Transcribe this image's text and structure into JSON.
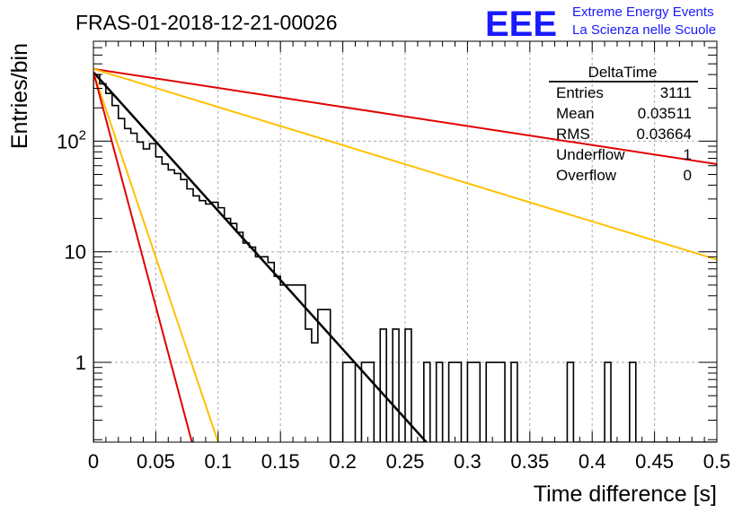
{
  "chart_data": {
    "type": "bar",
    "title": "FRAS-01-2018-12-21-00026",
    "xlabel": "Time difference [s]",
    "ylabel": "Entries/bin",
    "xlim": [
      0,
      0.5
    ],
    "ylim": [
      0.19,
      800
    ],
    "log_y": true,
    "grid": true,
    "x_ticks": [
      0,
      0.05,
      0.1,
      0.15,
      0.2,
      0.25,
      0.3,
      0.35,
      0.4,
      0.45,
      0.5
    ],
    "x_tick_labels": [
      "0",
      "0.05",
      "0.1",
      "0.15",
      "0.2",
      "0.25",
      "0.3",
      "0.35",
      "0.4",
      "0.45",
      "0.5"
    ],
    "y_ticks": [
      1,
      10,
      100
    ],
    "y_tick_labels": [
      "1",
      "10",
      "10^2"
    ],
    "histogram": {
      "bin_width": 0.005,
      "series_color": "#000000",
      "values": [
        400,
        330,
        270,
        210,
        160,
        130,
        118,
        98,
        85,
        95,
        72,
        62,
        55,
        51,
        45,
        37,
        32,
        29,
        27,
        28,
        25,
        20,
        18,
        15,
        12,
        11,
        9,
        9,
        8,
        6,
        5,
        5,
        5,
        5,
        2,
        1.5,
        3,
        3,
        0,
        0,
        1,
        1,
        0,
        1,
        1,
        0,
        2,
        0,
        2,
        0,
        2,
        0,
        0,
        1,
        0,
        1,
        0,
        1,
        1,
        0,
        1,
        1,
        0,
        1,
        1,
        1,
        0,
        1,
        0,
        0,
        0,
        0,
        0,
        0,
        0,
        0,
        1,
        0,
        0,
        0,
        0,
        0,
        1,
        0,
        0,
        0,
        1,
        0,
        0,
        0,
        0,
        0,
        0,
        0,
        0,
        0,
        0,
        0,
        0,
        0
      ]
    },
    "lines": [
      {
        "color": "#000000",
        "width": 2.5,
        "points": [
          [
            0.0,
            420
          ],
          [
            0.267,
            0.19
          ]
        ]
      },
      {
        "color": "#e00000",
        "width": 2,
        "points": [
          [
            0.0,
            450
          ],
          [
            0.5,
            62
          ]
        ]
      },
      {
        "color": "#ffc000",
        "width": 2,
        "points": [
          [
            0.0,
            450
          ],
          [
            0.5,
            8.5
          ]
        ]
      },
      {
        "color": "#ffc000",
        "width": 2,
        "points": [
          [
            0.0,
            420
          ],
          [
            0.1,
            0.19
          ]
        ]
      },
      {
        "color": "#e00000",
        "width": 2,
        "points": [
          [
            0.0,
            420
          ],
          [
            0.079,
            0.19
          ]
        ]
      }
    ],
    "stats": {
      "title": "DeltaTime",
      "rows": [
        {
          "label": "Entries",
          "value": "3111"
        },
        {
          "label": "Mean",
          "value": "0.03511"
        },
        {
          "label": "RMS",
          "value": "0.03664"
        },
        {
          "label": "Underflow",
          "value": "1"
        },
        {
          "label": "Overflow",
          "value": "0"
        }
      ]
    }
  },
  "logo": {
    "mark": "EEE",
    "line1": "Extreme Energy Events",
    "line2": "La Scienza nelle Scuole"
  }
}
